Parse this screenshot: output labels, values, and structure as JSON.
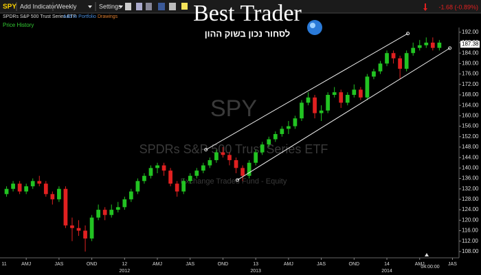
{
  "toolbar": {
    "symbol": "SPY",
    "add_indicator": "Add Indicator",
    "interval": "Weekly",
    "settings": "Settings",
    "change": "-1.68 (-0.89%)"
  },
  "subbar": {
    "name": "SPDRs S&P 500 Trust Series ETF",
    "add_portfolio": "Add to Portfolio",
    "drawings": "Drawings"
  },
  "logo": {
    "title": "Best Trader",
    "tagline": "לסחור נכון בשוק ההון"
  },
  "chart_data": {
    "type": "candlestick",
    "title": "Price History",
    "watermark": [
      "SPY",
      "SPDRs S&P 500 Trust Series ETF",
      "Exchange Traded Fund - Equity"
    ],
    "up_color": "#22c322",
    "down_color": "#e02020",
    "xlim": [
      2011.05,
      2014.55
    ],
    "ylim": [
      105.6,
      193.8
    ],
    "x": [
      2011.1,
      2011.15,
      2011.2,
      2011.25,
      2011.3,
      2011.35,
      2011.4,
      2011.45,
      2011.5,
      2011.55,
      2011.6,
      2011.65,
      2011.7,
      2011.75,
      2011.8,
      2011.85,
      2011.9,
      2011.95,
      2012.0,
      2012.05,
      2012.1,
      2012.15,
      2012.2,
      2012.25,
      2012.3,
      2012.35,
      2012.4,
      2012.45,
      2012.5,
      2012.55,
      2012.6,
      2012.65,
      2012.7,
      2012.75,
      2012.8,
      2012.85,
      2012.9,
      2012.95,
      2013.0,
      2013.05,
      2013.1,
      2013.15,
      2013.2,
      2013.25,
      2013.3,
      2013.35,
      2013.4,
      2013.45,
      2013.5,
      2013.55,
      2013.6,
      2013.65,
      2013.7,
      2013.75,
      2013.8,
      2013.85,
      2013.9,
      2013.95,
      2014.0,
      2014.05,
      2014.1,
      2014.15,
      2014.2,
      2014.25,
      2014.3,
      2014.35,
      2014.4
    ],
    "open": [
      130,
      132,
      134,
      131,
      133,
      135,
      134,
      130,
      128,
      132,
      118,
      117,
      116,
      113,
      121,
      124,
      122,
      124,
      125,
      128,
      131,
      135,
      137,
      140,
      141,
      139,
      134,
      131,
      135,
      137,
      139,
      141,
      143,
      146,
      145,
      143,
      140,
      137,
      142,
      146,
      149,
      151,
      153,
      155,
      156,
      159,
      165,
      167,
      161,
      162,
      168,
      169,
      165,
      168,
      170,
      167,
      175,
      177,
      180,
      184,
      182,
      178,
      184,
      186,
      187,
      188,
      186
    ],
    "high": [
      133,
      135,
      135,
      134,
      136,
      137,
      135,
      131,
      133,
      133,
      121,
      120,
      118,
      122,
      126,
      125,
      126,
      127,
      129,
      132,
      136,
      138,
      141,
      142,
      142,
      140,
      135,
      136,
      138,
      140,
      142,
      144,
      147,
      148,
      146,
      144,
      141,
      143,
      147,
      150,
      152,
      154,
      156,
      158,
      160,
      166,
      169,
      168,
      164,
      169,
      171,
      170,
      169,
      172,
      171,
      176,
      178,
      181,
      185,
      185,
      183,
      185,
      188,
      189,
      190,
      190,
      189
    ],
    "low": [
      129,
      131,
      130,
      130,
      132,
      133,
      129,
      126,
      127,
      117,
      112,
      114,
      108,
      112,
      120,
      120,
      121,
      123,
      124,
      127,
      130,
      134,
      136,
      138,
      137,
      133,
      129,
      130,
      134,
      136,
      138,
      140,
      142,
      144,
      141,
      138,
      135,
      136,
      141,
      145,
      148,
      150,
      152,
      153,
      155,
      158,
      164,
      159,
      158,
      161,
      167,
      163,
      164,
      167,
      166,
      166,
      174,
      176,
      179,
      180,
      174,
      177,
      183,
      185,
      186,
      185,
      185
    ],
    "close": [
      132,
      134,
      131,
      133,
      135,
      134,
      130,
      128,
      132,
      118,
      117,
      116,
      113,
      121,
      124,
      122,
      124,
      125,
      128,
      131,
      135,
      137,
      140,
      141,
      139,
      134,
      131,
      135,
      137,
      139,
      141,
      143,
      146,
      145,
      143,
      140,
      137,
      142,
      146,
      149,
      151,
      153,
      155,
      156,
      159,
      165,
      167,
      161,
      162,
      168,
      169,
      165,
      168,
      170,
      167,
      175,
      177,
      180,
      184,
      182,
      178,
      184,
      186,
      187,
      188,
      186,
      188
    ],
    "yticks": [
      {
        "value": 108,
        "label": "108.00"
      },
      {
        "value": 112,
        "label": "112.00"
      },
      {
        "value": 116,
        "label": "116.00"
      },
      {
        "value": 120,
        "label": "120.00"
      },
      {
        "value": 124,
        "label": "124.00"
      },
      {
        "value": 128,
        "label": "128.00"
      },
      {
        "value": 132,
        "label": "132.00"
      },
      {
        "value": 136,
        "label": "136.00"
      },
      {
        "value": 140,
        "label": "140.00"
      },
      {
        "value": 144,
        "label": "144.00"
      },
      {
        "value": 148,
        "label": "148.00"
      },
      {
        "value": 152,
        "label": "152.00"
      },
      {
        "value": 156,
        "label": "156.00"
      },
      {
        "value": 160,
        "label": "160.00"
      },
      {
        "value": 164,
        "label": "164.00"
      },
      {
        "value": 168,
        "label": "168.00"
      },
      {
        "value": 172,
        "label": "172.00"
      },
      {
        "value": 176,
        "label": "176.00"
      },
      {
        "value": 180,
        "label": "180.00"
      },
      {
        "value": 184,
        "label": "184.00"
      },
      {
        "value": 188,
        "label": "188.00"
      },
      {
        "value": 192,
        "label": "192.00"
      }
    ],
    "xticks": [
      {
        "value": 2011.0,
        "label": "11"
      },
      {
        "value": 2011.25,
        "label": "AMJ"
      },
      {
        "value": 2011.5,
        "label": "JAS"
      },
      {
        "value": 2011.75,
        "label": "OND"
      },
      {
        "value": 2012.0,
        "label": "12"
      },
      {
        "value": 2012.25,
        "label": "AMJ"
      },
      {
        "value": 2012.5,
        "label": "JAS"
      },
      {
        "value": 2012.75,
        "label": "OND"
      },
      {
        "value": 2013.0,
        "label": "13"
      },
      {
        "value": 2013.25,
        "label": "AMJ"
      },
      {
        "value": 2013.5,
        "label": "JAS"
      },
      {
        "value": 2013.75,
        "label": "OND"
      },
      {
        "value": 2014.0,
        "label": "14"
      },
      {
        "value": 2014.25,
        "label": "AMJ"
      },
      {
        "value": 2014.5,
        "label": "JAS"
      }
    ],
    "year_ticks": [
      2012,
      2013,
      2014
    ],
    "last_price": 187.38,
    "time_label": "04:00:00",
    "trendlines": [
      {
        "x": [
          2012.62,
          2014.16
        ],
        "y": [
          147.0,
          191.5
        ]
      },
      {
        "x": [
          2012.86,
          2014.48
        ],
        "y": [
          135.4,
          185.9
        ]
      }
    ]
  }
}
